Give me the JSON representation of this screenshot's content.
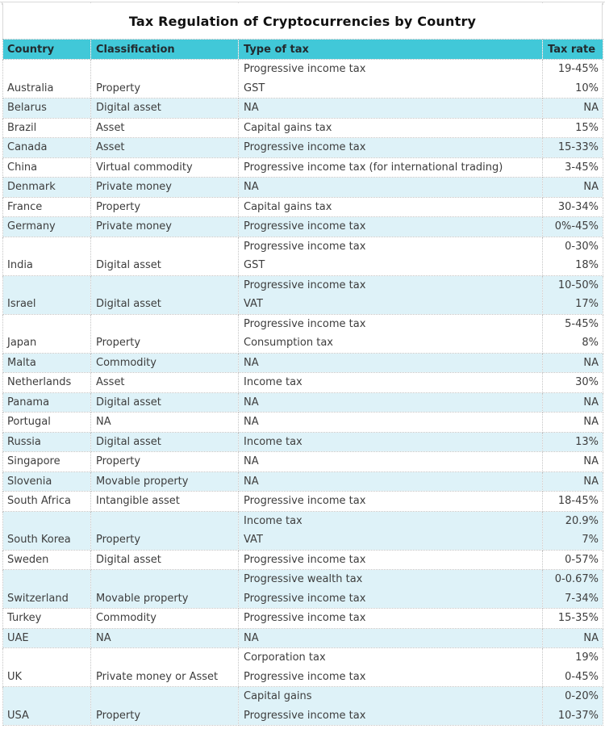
{
  "title": "Tax Regulation of Cryptocurrencies by Country",
  "colors": {
    "header_bg": "#41c8d8",
    "alt_row_bg": "#def2f8",
    "grid": "#c4c4c4",
    "text": "#3d3d3d"
  },
  "table": {
    "columns": [
      "Country",
      "Classification",
      "Type of tax",
      "Tax rate"
    ],
    "rows": [
      {
        "country": "Australia",
        "classification": "Property",
        "tax_types": [
          "Progressive income tax",
          "GST"
        ],
        "tax_rates": [
          "19-45%",
          "10%"
        ]
      },
      {
        "country": "Belarus",
        "classification": "Digital asset",
        "tax_types": [
          "NA"
        ],
        "tax_rates": [
          "NA"
        ]
      },
      {
        "country": "Brazil",
        "classification": "Asset",
        "tax_types": [
          "Capital gains tax"
        ],
        "tax_rates": [
          "15%"
        ]
      },
      {
        "country": "Canada",
        "classification": "Asset",
        "tax_types": [
          "Progressive income tax"
        ],
        "tax_rates": [
          "15-33%"
        ]
      },
      {
        "country": "China",
        "classification": "Virtual commodity",
        "tax_types": [
          "Progressive income tax (for international trading)"
        ],
        "tax_rates": [
          "3-45%"
        ]
      },
      {
        "country": "Denmark",
        "classification": "Private money",
        "tax_types": [
          "NA"
        ],
        "tax_rates": [
          "NA"
        ]
      },
      {
        "country": "France",
        "classification": "Property",
        "tax_types": [
          "Capital gains tax"
        ],
        "tax_rates": [
          "30-34%"
        ]
      },
      {
        "country": "Germany",
        "classification": "Private money",
        "tax_types": [
          "Progressive income tax"
        ],
        "tax_rates": [
          "0%-45%"
        ]
      },
      {
        "country": "India",
        "classification": "Digital asset",
        "tax_types": [
          "Progressive income tax",
          "GST"
        ],
        "tax_rates": [
          "0-30%",
          "18%"
        ]
      },
      {
        "country": "Israel",
        "classification": "Digital asset",
        "tax_types": [
          "Progressive income tax",
          "VAT"
        ],
        "tax_rates": [
          "10-50%",
          "17%"
        ]
      },
      {
        "country": "Japan",
        "classification": "Property",
        "tax_types": [
          "Progressive income tax",
          "Consumption tax"
        ],
        "tax_rates": [
          "5-45%",
          "8%"
        ]
      },
      {
        "country": "Malta",
        "classification": "Commodity",
        "tax_types": [
          "NA"
        ],
        "tax_rates": [
          "NA"
        ]
      },
      {
        "country": "Netherlands",
        "classification": "Asset",
        "tax_types": [
          "Income tax"
        ],
        "tax_rates": [
          "30%"
        ]
      },
      {
        "country": "Panama",
        "classification": "Digital asset",
        "tax_types": [
          "NA"
        ],
        "tax_rates": [
          "NA"
        ]
      },
      {
        "country": "Portugal",
        "classification": "NA",
        "tax_types": [
          "NA"
        ],
        "tax_rates": [
          "NA"
        ]
      },
      {
        "country": "Russia",
        "classification": "Digital asset",
        "tax_types": [
          "Income tax"
        ],
        "tax_rates": [
          "13%"
        ]
      },
      {
        "country": "Singapore",
        "classification": "Property",
        "tax_types": [
          "NA"
        ],
        "tax_rates": [
          "NA"
        ]
      },
      {
        "country": "Slovenia",
        "classification": "Movable property",
        "tax_types": [
          "NA"
        ],
        "tax_rates": [
          "NA"
        ]
      },
      {
        "country": "South Africa",
        "classification": "Intangible asset",
        "tax_types": [
          "Progressive income tax"
        ],
        "tax_rates": [
          "18-45%"
        ]
      },
      {
        "country": "South Korea",
        "classification": "Property",
        "tax_types": [
          "Income tax",
          "VAT"
        ],
        "tax_rates": [
          "20.9%",
          "7%"
        ]
      },
      {
        "country": "Sweden",
        "classification": "Digital asset",
        "tax_types": [
          "Progressive income tax"
        ],
        "tax_rates": [
          "0-57%"
        ]
      },
      {
        "country": "Switzerland",
        "classification": "Movable property",
        "tax_types": [
          "Progressive wealth tax",
          "Progressive income tax"
        ],
        "tax_rates": [
          "0-0.67%",
          "7-34%"
        ]
      },
      {
        "country": "Turkey",
        "classification": "Commodity",
        "tax_types": [
          "Progressive income tax"
        ],
        "tax_rates": [
          "15-35%"
        ]
      },
      {
        "country": "UAE",
        "classification": "NA",
        "tax_types": [
          "NA"
        ],
        "tax_rates": [
          "NA"
        ]
      },
      {
        "country": "UK",
        "classification": "Private money or Asset",
        "tax_types": [
          "Corporation tax",
          "Progressive income tax"
        ],
        "tax_rates": [
          "19%",
          "0-45%"
        ]
      },
      {
        "country": "USA",
        "classification": "Property",
        "tax_types": [
          "Capital gains",
          "Progressive income tax"
        ],
        "tax_rates": [
          "0-20%",
          "10-37%"
        ]
      }
    ]
  }
}
